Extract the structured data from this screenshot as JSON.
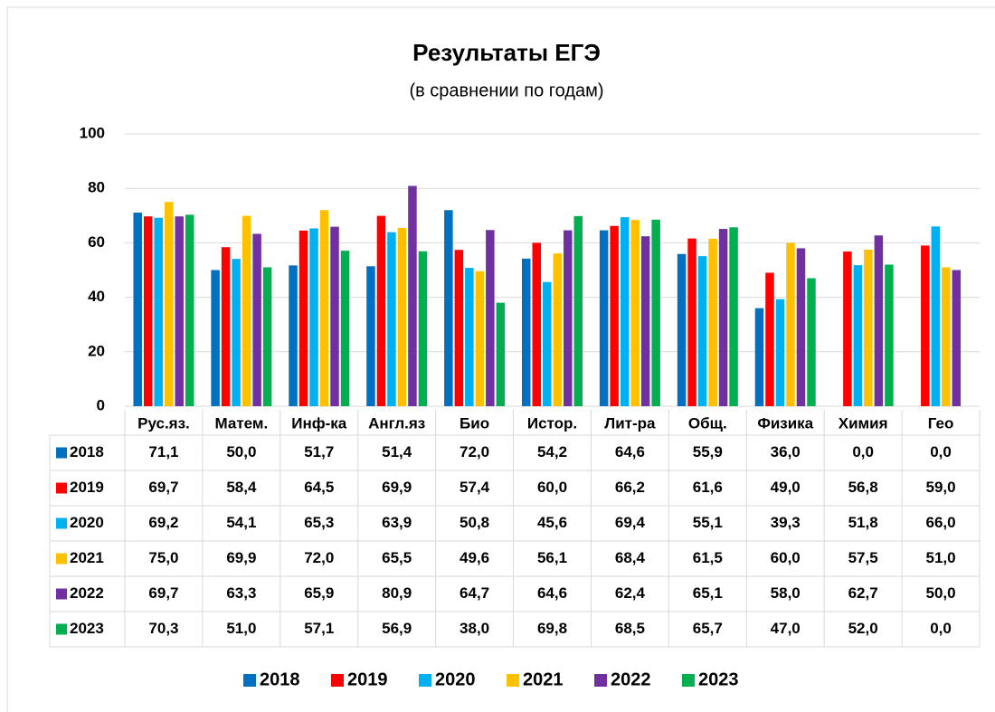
{
  "chart_data": {
    "type": "bar",
    "title": "Результаты ЕГЭ",
    "subtitle": "(в сравнении по годам)",
    "categories": [
      "Рус.яз.",
      "Матем.",
      "Инф-ка",
      "Англ.яз",
      "Био",
      "Истор.",
      "Лит-ра",
      "Общ.",
      "Физика",
      "Химия",
      "Гео"
    ],
    "ylim": [
      0,
      100
    ],
    "yticks": [
      0,
      20,
      40,
      60,
      80,
      100
    ],
    "grid": true,
    "legend": "bottom",
    "series": [
      {
        "name": "2018",
        "color": "#0070c0",
        "values": [
          71.1,
          50.0,
          51.7,
          51.4,
          72.0,
          54.2,
          64.6,
          55.9,
          36.0,
          0.0,
          0.0
        ],
        "value_labels": [
          "71,1",
          "50,0",
          "51,7",
          "51,4",
          "72,0",
          "54,2",
          "64,6",
          "55,9",
          "36,0",
          "0,0",
          "0,0"
        ]
      },
      {
        "name": "2019",
        "color": "#ff0000",
        "values": [
          69.7,
          58.4,
          64.5,
          69.9,
          57.4,
          60.0,
          66.2,
          61.6,
          49.0,
          56.8,
          59.0
        ],
        "value_labels": [
          "69,7",
          "58,4",
          "64,5",
          "69,9",
          "57,4",
          "60,0",
          "66,2",
          "61,6",
          "49,0",
          "56,8",
          "59,0"
        ]
      },
      {
        "name": "2020",
        "color": "#00b0f0",
        "values": [
          69.2,
          54.1,
          65.3,
          63.9,
          50.8,
          45.6,
          69.4,
          55.1,
          39.3,
          51.8,
          66.0
        ],
        "value_labels": [
          "69,2",
          "54,1",
          "65,3",
          "63,9",
          "50,8",
          "45,6",
          "69,4",
          "55,1",
          "39,3",
          "51,8",
          "66,0"
        ]
      },
      {
        "name": "2021",
        "color": "#ffc000",
        "values": [
          75.0,
          69.9,
          72.0,
          65.5,
          49.6,
          56.1,
          68.4,
          61.5,
          60.0,
          57.5,
          51.0
        ],
        "value_labels": [
          "75,0",
          "69,9",
          "72,0",
          "65,5",
          "49,6",
          "56,1",
          "68,4",
          "61,5",
          "60,0",
          "57,5",
          "51,0"
        ]
      },
      {
        "name": "2022",
        "color": "#7030a0",
        "values": [
          69.7,
          63.3,
          65.9,
          80.9,
          64.7,
          64.6,
          62.4,
          65.1,
          58.0,
          62.7,
          50.0
        ],
        "value_labels": [
          "69,7",
          "63,3",
          "65,9",
          "80,9",
          "64,7",
          "64,6",
          "62,4",
          "65,1",
          "58,0",
          "62,7",
          "50,0"
        ]
      },
      {
        "name": "2023",
        "color": "#00b050",
        "values": [
          70.3,
          51.0,
          57.1,
          56.9,
          38.0,
          69.8,
          68.5,
          65.7,
          47.0,
          52.0,
          0.0
        ],
        "value_labels": [
          "70,3",
          "51,0",
          "57,1",
          "56,9",
          "38,0",
          "69,8",
          "68,5",
          "65,7",
          "47,0",
          "52,0",
          "0,0"
        ]
      }
    ]
  }
}
